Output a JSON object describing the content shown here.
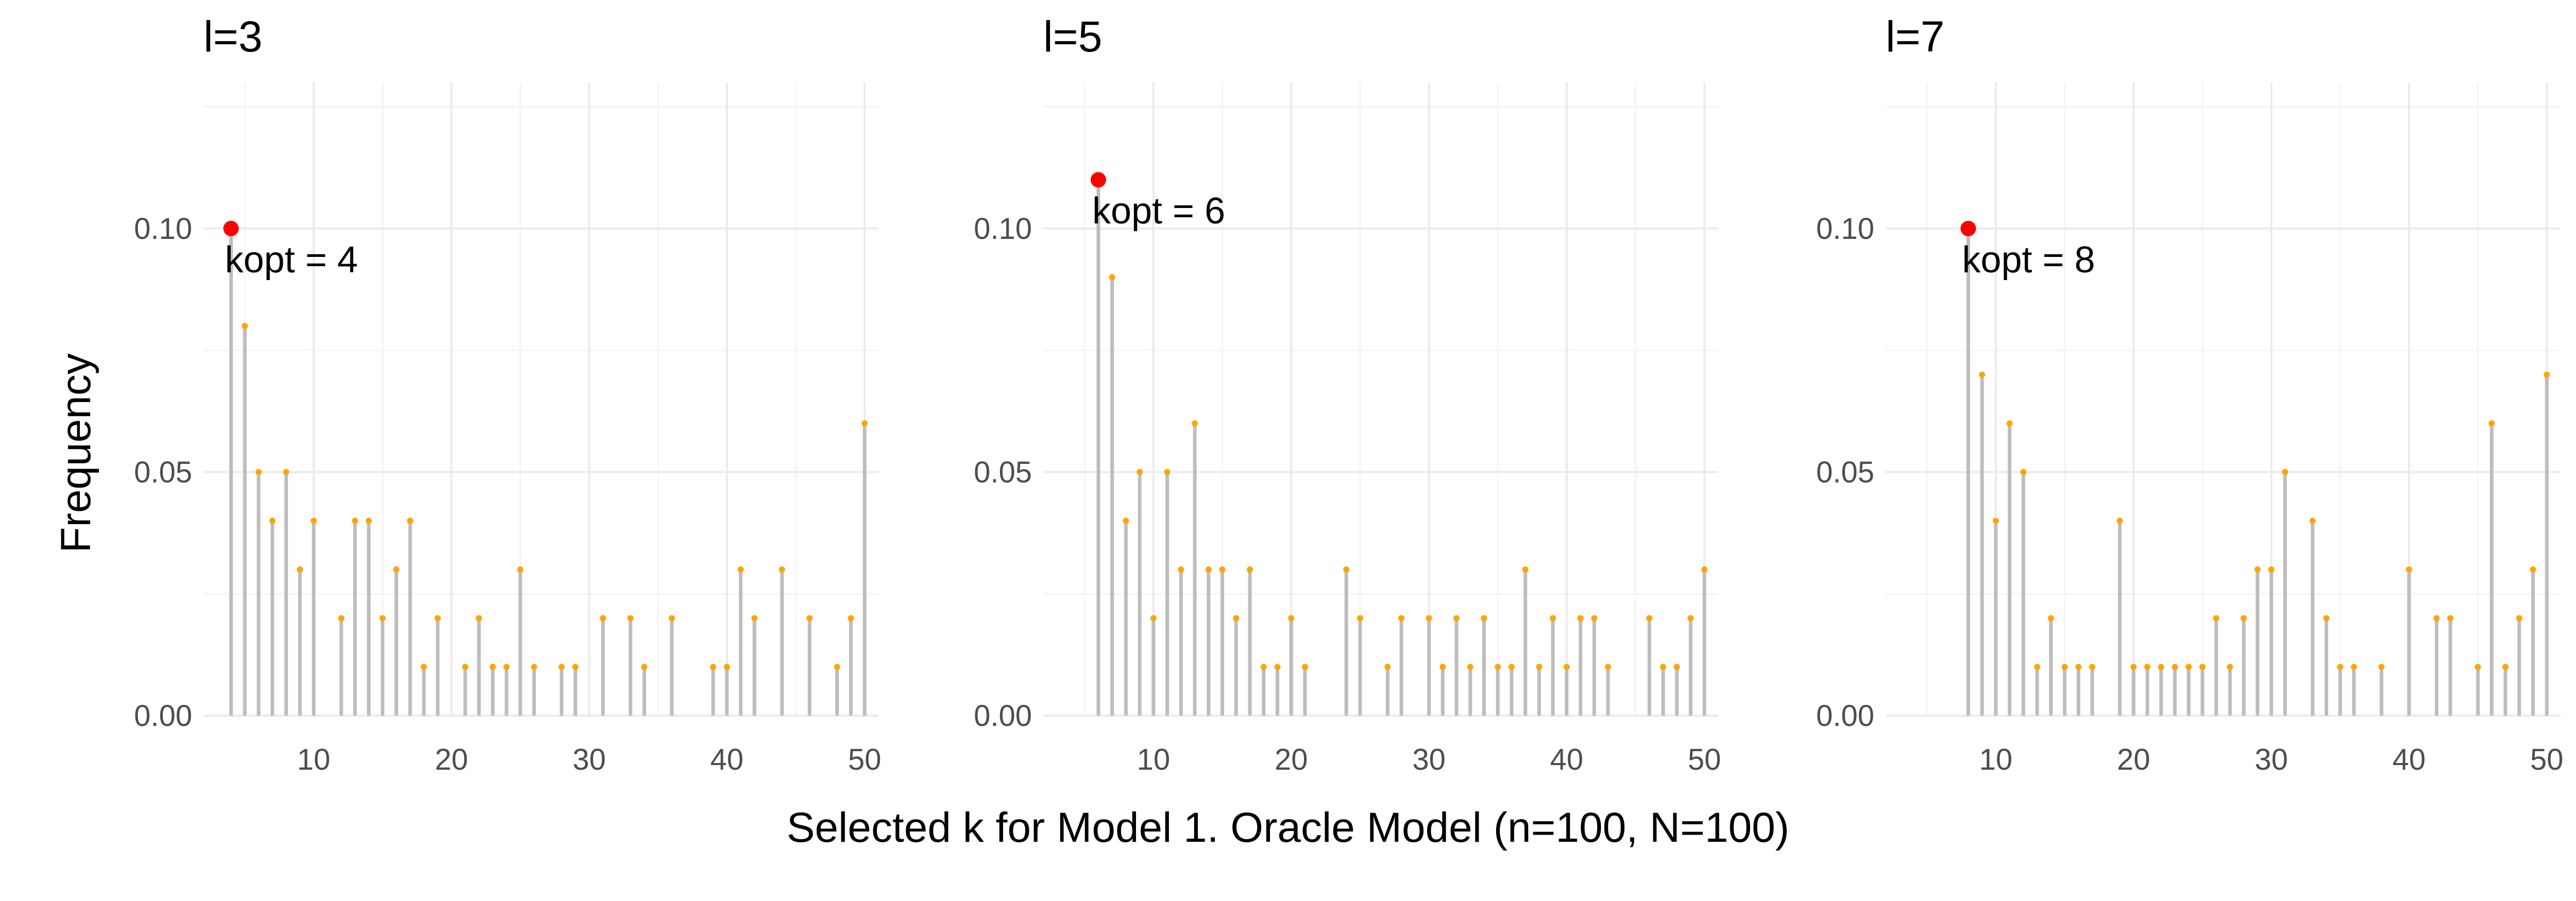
{
  "chart_data": {
    "type": "lollipop",
    "xlabel": "Selected k for Model 1. Oracle Model (n=100, N=100)",
    "ylabel": "Frequency",
    "xlim": [
      2,
      51
    ],
    "ylim": [
      0,
      0.13
    ],
    "x_ticks": [
      10,
      20,
      30,
      40,
      50
    ],
    "y_ticks": [
      0.0,
      0.05,
      0.1
    ],
    "y_tick_labels": [
      "0.00",
      "0.05",
      "0.10"
    ],
    "grid": true,
    "colors": {
      "stem": "#bdbdbd",
      "point": "#ffa500",
      "highlight": "#ff0000",
      "grid": "#ebebeb"
    },
    "panels": [
      {
        "title": "l=3",
        "annotation": "kopt = 4",
        "kopt": 4,
        "kopt_freq": 0.1,
        "x": [
          4,
          5,
          6,
          7,
          8,
          9,
          10,
          12,
          13,
          14,
          15,
          16,
          17,
          18,
          19,
          21,
          22,
          23,
          24,
          25,
          26,
          28,
          29,
          31,
          33,
          34,
          36,
          39,
          40,
          41,
          42,
          44,
          46,
          48,
          49,
          50
        ],
        "y": [
          0.1,
          0.08,
          0.05,
          0.04,
          0.05,
          0.03,
          0.04,
          0.02,
          0.04,
          0.04,
          0.02,
          0.03,
          0.04,
          0.01,
          0.02,
          0.01,
          0.02,
          0.01,
          0.01,
          0.03,
          0.01,
          0.01,
          0.01,
          0.02,
          0.02,
          0.01,
          0.02,
          0.01,
          0.01,
          0.03,
          0.02,
          0.03,
          0.02,
          0.01,
          0.02,
          0.06
        ]
      },
      {
        "title": "l=5",
        "annotation": "kopt = 6",
        "kopt": 6,
        "kopt_freq": 0.11,
        "x": [
          6,
          7,
          8,
          9,
          10,
          11,
          12,
          13,
          14,
          15,
          16,
          17,
          18,
          19,
          20,
          21,
          24,
          25,
          27,
          28,
          30,
          31,
          32,
          33,
          34,
          35,
          36,
          37,
          38,
          39,
          40,
          41,
          42,
          43,
          46,
          47,
          48,
          49,
          50
        ],
        "y": [
          0.11,
          0.09,
          0.04,
          0.05,
          0.02,
          0.05,
          0.03,
          0.06,
          0.03,
          0.03,
          0.02,
          0.03,
          0.01,
          0.01,
          0.02,
          0.01,
          0.03,
          0.02,
          0.01,
          0.02,
          0.02,
          0.01,
          0.02,
          0.01,
          0.02,
          0.01,
          0.01,
          0.03,
          0.01,
          0.02,
          0.01,
          0.02,
          0.02,
          0.01,
          0.02,
          0.01,
          0.01,
          0.02,
          0.03
        ]
      },
      {
        "title": "l=7",
        "annotation": "kopt = 8",
        "kopt": 8,
        "kopt_freq": 0.1,
        "x": [
          8,
          9,
          10,
          11,
          12,
          13,
          14,
          15,
          16,
          17,
          19,
          20,
          21,
          22,
          23,
          24,
          25,
          26,
          27,
          28,
          29,
          30,
          31,
          33,
          34,
          35,
          36,
          38,
          40,
          42,
          43,
          45,
          46,
          47,
          48,
          49,
          50
        ],
        "y": [
          0.1,
          0.07,
          0.04,
          0.06,
          0.05,
          0.01,
          0.02,
          0.01,
          0.01,
          0.01,
          0.04,
          0.01,
          0.01,
          0.01,
          0.01,
          0.01,
          0.01,
          0.02,
          0.01,
          0.02,
          0.03,
          0.03,
          0.05,
          0.04,
          0.02,
          0.01,
          0.01,
          0.01,
          0.03,
          0.02,
          0.02,
          0.01,
          0.06,
          0.01,
          0.02,
          0.03,
          0.07
        ]
      }
    ]
  }
}
